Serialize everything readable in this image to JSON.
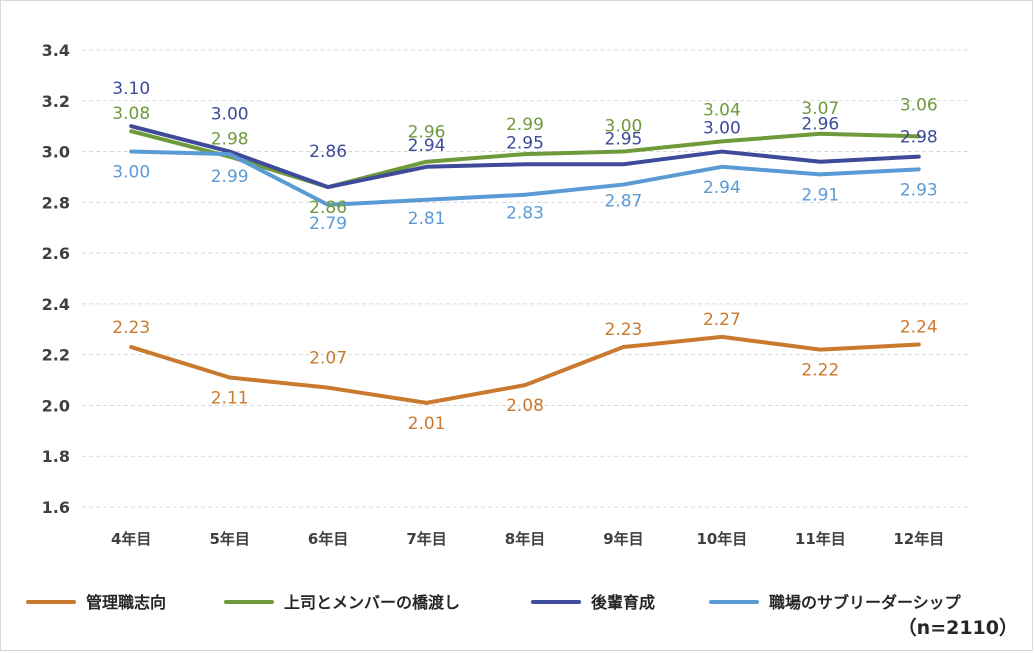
{
  "chart_data": {
    "type": "line",
    "title": "",
    "xlabel": "",
    "ylabel": "",
    "categories": [
      "4年目",
      "5年目",
      "6年目",
      "7年目",
      "8年目",
      "9年目",
      "10年目",
      "11年目",
      "12年目"
    ],
    "ylim": [
      1.6,
      3.4
    ],
    "yticks": [
      "1.6",
      "1.8",
      "2.0",
      "2.2",
      "2.4",
      "2.6",
      "2.8",
      "3.0",
      "3.2",
      "3.4"
    ],
    "grid": "horizontal-dashed",
    "legend_position": "bottom",
    "note": "（n=2110）",
    "series": [
      {
        "name": "管理職志向",
        "color": "#C97A2E",
        "values": [
          2.23,
          2.11,
          2.07,
          2.01,
          2.08,
          2.23,
          2.27,
          2.22,
          2.24
        ],
        "labels": [
          "2.23",
          "2.11",
          "2.07",
          "2.01",
          "2.08",
          "2.23",
          "2.27",
          "2.22",
          "2.24"
        ]
      },
      {
        "name": "上司とメンバーの橋渡し",
        "color": "#6F9A3C",
        "values": [
          3.08,
          2.98,
          2.86,
          2.96,
          2.99,
          3.0,
          3.04,
          3.07,
          3.06
        ],
        "labels": [
          "3.08",
          "2.98",
          "2.86",
          "2.96",
          "2.99",
          "3.00",
          "3.04",
          "3.07",
          "3.06"
        ]
      },
      {
        "name": "後輩育成",
        "color": "#3E4A9A",
        "values": [
          3.1,
          3.0,
          2.86,
          2.94,
          2.95,
          2.95,
          3.0,
          2.96,
          2.98
        ],
        "labels": [
          "3.10",
          "3.00",
          "2.86",
          "2.94",
          "2.95",
          "2.95",
          "3.00",
          "2.96",
          "2.98"
        ]
      },
      {
        "name": "職場のサブリーダーシップ",
        "color": "#5B9BD5",
        "values": [
          3.0,
          2.99,
          2.79,
          2.81,
          2.83,
          2.87,
          2.94,
          2.91,
          2.93
        ],
        "labels": [
          "3.00",
          "2.99",
          "2.79",
          "2.81",
          "2.83",
          "2.87",
          "2.94",
          "2.91",
          "2.93"
        ]
      }
    ]
  }
}
